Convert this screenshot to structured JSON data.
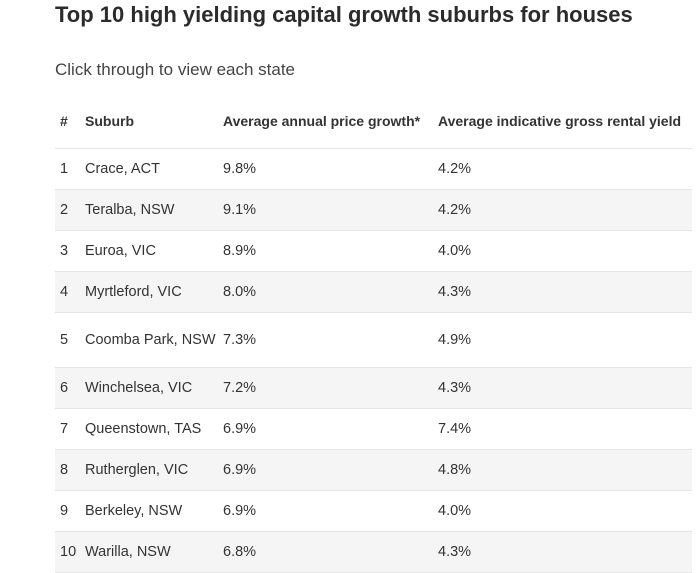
{
  "header": {
    "title": "Top 10 high yielding capital growth suburbs for houses",
    "subtitle": "Click through to view each state"
  },
  "table": {
    "columns": [
      "#",
      "Suburb",
      "Average annual price growth*",
      "Average indicative gross rental yield"
    ],
    "rows": [
      {
        "rank": "1",
        "suburb": "Crace, ACT",
        "growth": "9.8%",
        "yield": "4.2%"
      },
      {
        "rank": "2",
        "suburb": "Teralba, NSW",
        "growth": "9.1%",
        "yield": "4.2%"
      },
      {
        "rank": "3",
        "suburb": "Euroa, VIC",
        "growth": "8.9%",
        "yield": "4.0%"
      },
      {
        "rank": "4",
        "suburb": "Myrtleford, VIC",
        "growth": "8.0%",
        "yield": "4.3%"
      },
      {
        "rank": "5",
        "suburb": "Coomba Park, NSW",
        "growth": "7.3%",
        "yield": "4.9%"
      },
      {
        "rank": "6",
        "suburb": "Winchelsea, VIC",
        "growth": "7.2%",
        "yield": "4.3%"
      },
      {
        "rank": "7",
        "suburb": "Queenstown, TAS",
        "growth": "6.9%",
        "yield": "7.4%"
      },
      {
        "rank": "8",
        "suburb": "Rutherglen, VIC",
        "growth": "6.9%",
        "yield": "4.8%"
      },
      {
        "rank": "9",
        "suburb": "Berkeley, NSW",
        "growth": "6.9%",
        "yield": "4.0%"
      },
      {
        "rank": "10",
        "suburb": "Warilla, NSW",
        "growth": "6.8%",
        "yield": "4.3%"
      }
    ]
  }
}
